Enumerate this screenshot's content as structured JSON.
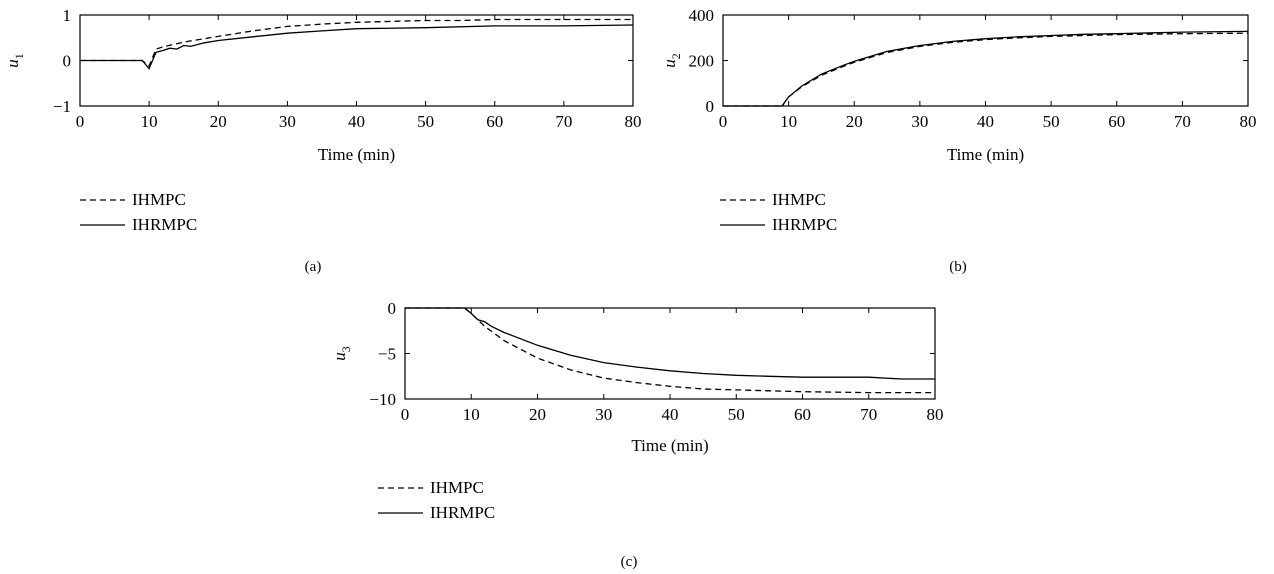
{
  "chart_data": [
    {
      "type": "line",
      "panel_label": "(a)",
      "xlabel": "Time (min)",
      "ylabel": "u",
      "ylabel_sub": "1",
      "xlim": [
        0,
        80
      ],
      "ylim": [
        -1,
        1
      ],
      "xticks": [
        0,
        10,
        20,
        30,
        40,
        50,
        60,
        70,
        80
      ],
      "yticks": [
        -1,
        0,
        1
      ],
      "ytick_labels": [
        "−1",
        "0",
        "1"
      ],
      "legend_position": "below",
      "series": [
        {
          "name": "IHMPC",
          "style": "dashed",
          "x": [
            0,
            9,
            10,
            11,
            12,
            14,
            16,
            18,
            20,
            25,
            30,
            35,
            40,
            45,
            50,
            55,
            60,
            70,
            80
          ],
          "y": [
            0,
            0,
            -0.12,
            0.25,
            0.3,
            0.37,
            0.43,
            0.48,
            0.53,
            0.65,
            0.75,
            0.8,
            0.84,
            0.86,
            0.88,
            0.88,
            0.9,
            0.9,
            0.9
          ]
        },
        {
          "name": "IHRMPC",
          "style": "solid",
          "x": [
            0,
            9,
            10,
            11,
            12,
            13,
            14,
            15,
            16,
            18,
            20,
            25,
            30,
            35,
            40,
            50,
            60,
            70,
            80
          ],
          "y": [
            0,
            0,
            -0.18,
            0.18,
            0.22,
            0.27,
            0.25,
            0.33,
            0.31,
            0.39,
            0.44,
            0.52,
            0.6,
            0.65,
            0.7,
            0.72,
            0.76,
            0.76,
            0.78
          ]
        }
      ]
    },
    {
      "type": "line",
      "panel_label": "(b)",
      "xlabel": "Time (min)",
      "ylabel": "u",
      "ylabel_sub": "2",
      "xlim": [
        0,
        80
      ],
      "ylim": [
        0,
        400
      ],
      "xticks": [
        0,
        10,
        20,
        30,
        40,
        50,
        60,
        70,
        80
      ],
      "yticks": [
        0,
        200,
        400
      ],
      "ytick_labels": [
        "0",
        "200",
        "400"
      ],
      "legend_position": "below",
      "series": [
        {
          "name": "IHMPC",
          "style": "dashed",
          "x": [
            0,
            8,
            9,
            10,
            12,
            15,
            18,
            20,
            25,
            30,
            35,
            40,
            45,
            50,
            55,
            60,
            70,
            80
          ],
          "y": [
            0,
            0,
            0,
            40,
            85,
            135,
            170,
            192,
            235,
            262,
            280,
            292,
            300,
            306,
            310,
            314,
            318,
            320
          ]
        },
        {
          "name": "IHRMPC",
          "style": "solid",
          "x": [
            0,
            8,
            9,
            10,
            12,
            15,
            18,
            20,
            25,
            30,
            35,
            40,
            45,
            50,
            55,
            60,
            70,
            80
          ],
          "y": [
            0,
            0,
            0,
            40,
            88,
            140,
            175,
            197,
            240,
            266,
            284,
            296,
            304,
            310,
            315,
            318,
            325,
            328
          ]
        }
      ]
    },
    {
      "type": "line",
      "panel_label": "(c)",
      "xlabel": "Time (min)",
      "ylabel": "u",
      "ylabel_sub": "3",
      "xlim": [
        0,
        80
      ],
      "ylim": [
        -10,
        0
      ],
      "xticks": [
        0,
        10,
        20,
        30,
        40,
        50,
        60,
        70,
        80
      ],
      "yticks": [
        -10,
        -5,
        0
      ],
      "ytick_labels": [
        "−10",
        "−5",
        "0"
      ],
      "legend_position": "below",
      "series": [
        {
          "name": "IHMPC",
          "style": "dashed",
          "x": [
            0,
            8,
            9,
            10,
            12,
            15,
            20,
            25,
            30,
            35,
            40,
            45,
            50,
            55,
            60,
            70,
            80
          ],
          "y": [
            0,
            0,
            0,
            -0.6,
            -2.0,
            -3.6,
            -5.5,
            -6.8,
            -7.7,
            -8.2,
            -8.6,
            -8.9,
            -9.0,
            -9.1,
            -9.2,
            -9.3,
            -9.3
          ]
        },
        {
          "name": "IHRMPC",
          "style": "solid",
          "x": [
            0,
            8,
            9,
            10,
            11,
            12,
            13,
            15,
            20,
            25,
            30,
            35,
            40,
            45,
            50,
            55,
            60,
            70,
            75,
            80
          ],
          "y": [
            0,
            0,
            0,
            -0.6,
            -1.3,
            -1.5,
            -2.0,
            -2.7,
            -4.1,
            -5.2,
            -6.0,
            -6.5,
            -6.9,
            -7.2,
            -7.4,
            -7.5,
            -7.6,
            -7.6,
            -7.8,
            -7.8
          ]
        }
      ]
    }
  ]
}
